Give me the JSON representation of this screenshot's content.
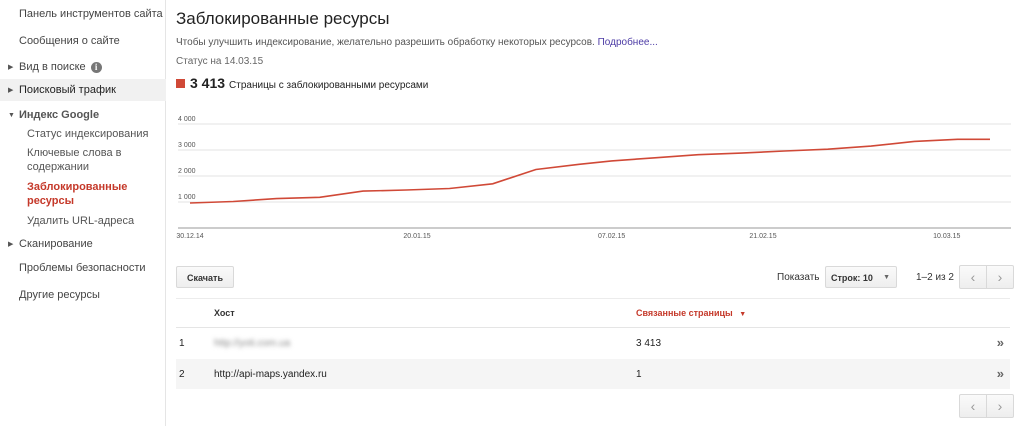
{
  "sidebar": {
    "dashboard": "Панель инструментов сайта",
    "messages": "Сообщения о сайте",
    "search_appearance": "Вид в поиске",
    "search_traffic": "Поисковый трафик",
    "google_index": "Индекс Google",
    "index_status": "Статус индексирования",
    "content_keywords": [
      "Ключевые слова в",
      "содержании"
    ],
    "blocked_resources": [
      "Заблокированные",
      "ресурсы"
    ],
    "remove_urls": "Удалить URL-адреса",
    "crawl": "Сканирование",
    "security_issues": "Проблемы безопасности",
    "other_resources": "Другие ресурсы"
  },
  "page": {
    "title": "Заблокированные ресурсы",
    "description": "Чтобы улучшить индексирование, желательно разрешить обработку некоторых ресурсов.",
    "more_link": "Подробнее...",
    "status": "Статус на 14.03.15",
    "legend_value": "3 413",
    "legend_label": "Страницы с заблокированными ресурсами",
    "accent_color": "#d04937"
  },
  "chart_data": {
    "type": "line",
    "series": [
      {
        "name": "Страницы с заблокированными ресурсами",
        "x": [
          "30.12.14",
          "03.01.15",
          "07.01.15",
          "11.01.15",
          "15.01.15",
          "19.01.15",
          "23.01.15",
          "27.01.15",
          "31.01.15",
          "04.02.15",
          "07.02.15",
          "11.02.15",
          "15.02.15",
          "19.02.15",
          "23.02.15",
          "27.02.15",
          "03.03.15",
          "07.03.15",
          "11.03.15",
          "14.03.15"
        ],
        "values": [
          960,
          1020,
          1130,
          1180,
          1420,
          1460,
          1520,
          1700,
          2250,
          2450,
          2580,
          2700,
          2820,
          2880,
          2960,
          3030,
          3150,
          3330,
          3413,
          3413
        ]
      }
    ],
    "yticks": [
      "1 000",
      "2 000",
      "3 000",
      "4 000"
    ],
    "xticks": [
      "30.12.14",
      "20.01.15",
      "07.02.15",
      "21.02.15",
      "10.03.15"
    ],
    "ylim": [
      0,
      4000
    ],
    "grid": true
  },
  "toolbar": {
    "download": "Скачать",
    "show": "Показать",
    "rows_select": "Строк: 10",
    "range": "1–2 из 2",
    "prev": "‹",
    "next": "›"
  },
  "table": {
    "headers": {
      "host": "Хост",
      "pages": "Связанные страницы"
    },
    "sort_indicator": "▼",
    "rows": [
      {
        "index": "1",
        "host": "http://yoti.com.ua",
        "pages": "3 413"
      },
      {
        "index": "2",
        "host": "http://api-maps.yandex.ru",
        "pages": "1"
      }
    ],
    "row_action": "»"
  }
}
